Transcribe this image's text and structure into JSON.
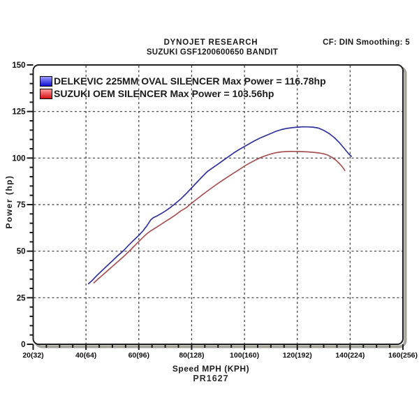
{
  "header": {
    "brand": "DYNOJET RESEARCH",
    "vehicle": "SUZUKI GSF1200600650 BANDIT",
    "settings": "CF: DIN  Smoothing: 5"
  },
  "chart_data": {
    "type": "line",
    "title": "DYNOJET RESEARCH",
    "subtitle": "SUZUKI GSF1200600650 BANDIT",
    "correction_factor": "CF: DIN",
    "smoothing": "Smoothing: 5",
    "xlabel": "Speed MPH (KPH)",
    "ylabel": "Power (hp)",
    "run_code": "PR1627",
    "xlim": [
      20,
      160
    ],
    "ylim": [
      0,
      150
    ],
    "x_major_step": 20,
    "x_minor_step": 5,
    "y_major_step": 25,
    "y_minor_step": 5,
    "grid": "dashed",
    "grid_color": "#3a3a3a",
    "border_color": "#1f1f1f",
    "shadow_color": "#a5a49a",
    "legend_position": "top-left",
    "x_tick_labels": [
      "20(32)",
      "40(64)",
      "60(96)",
      "80(128)",
      "100(160)",
      "120(192)",
      "140(224)",
      "160(256)"
    ],
    "y_tick_labels": [
      "0",
      "25",
      "50",
      "75",
      "100",
      "125",
      "150"
    ],
    "series": [
      {
        "name": "DELKEVIC 225MM OVAL SILENCER",
        "legend_label": "DELKEVIC 225MM OVAL SILENCER Max Power = 116.78hp",
        "max_power_hp": 116.78,
        "line_color": "#32329b",
        "swatch_top_color": "#9a9aff",
        "swatch_bottom_color": "#0f0fd6",
        "points": [
          [
            41,
            32.5
          ],
          [
            42.5,
            34.5
          ],
          [
            44,
            36.8
          ],
          [
            46,
            39.5
          ],
          [
            48,
            42.2
          ],
          [
            50,
            44.8
          ],
          [
            52,
            47.5
          ],
          [
            54,
            50
          ],
          [
            56,
            53
          ],
          [
            58,
            55.8
          ],
          [
            60,
            58.5
          ],
          [
            61.5,
            60.8
          ],
          [
            63,
            63.5
          ],
          [
            64.5,
            66.8
          ],
          [
            65.5,
            68
          ],
          [
            67,
            69
          ],
          [
            68.5,
            70.2
          ],
          [
            70,
            71.5
          ],
          [
            72,
            73.5
          ],
          [
            74,
            75.8
          ],
          [
            76,
            78.2
          ],
          [
            78,
            81
          ],
          [
            80,
            84
          ],
          [
            82,
            87
          ],
          [
            84,
            90
          ],
          [
            86,
            92.8
          ],
          [
            88,
            94.8
          ],
          [
            90,
            96.8
          ],
          [
            92,
            98.8
          ],
          [
            94,
            100.8
          ],
          [
            96,
            102.8
          ],
          [
            98,
            104.6
          ],
          [
            100,
            106.2
          ],
          [
            102,
            107.8
          ],
          [
            104,
            109.4
          ],
          [
            106,
            110.8
          ],
          [
            108,
            112
          ],
          [
            110,
            113.2
          ],
          [
            112,
            114.4
          ],
          [
            114,
            115.3
          ],
          [
            116,
            115.9
          ],
          [
            118,
            116.3
          ],
          [
            120,
            116.6
          ],
          [
            122,
            116.78
          ],
          [
            124,
            116.75
          ],
          [
            126,
            116.6
          ],
          [
            128,
            116.1
          ],
          [
            130,
            114.9
          ],
          [
            132,
            113.2
          ],
          [
            134,
            111
          ],
          [
            136,
            108.2
          ],
          [
            138,
            104.8
          ],
          [
            139.5,
            102.2
          ],
          [
            140.5,
            100.9
          ]
        ]
      },
      {
        "name": "SUZUKI OEM SILENCER",
        "legend_label": "SUZUKI OEM SILENCER Max Power = 103.56hp",
        "max_power_hp": 103.56,
        "line_color": "#a65353",
        "swatch_top_color": "#ff9a9a",
        "swatch_bottom_color": "#d61111",
        "points": [
          [
            43,
            33
          ],
          [
            44.5,
            35
          ],
          [
            46,
            36.8
          ],
          [
            48,
            39.3
          ],
          [
            50,
            41.8
          ],
          [
            52,
            44.3
          ],
          [
            54,
            46.8
          ],
          [
            56,
            49.5
          ],
          [
            58,
            52.3
          ],
          [
            60,
            55.2
          ],
          [
            61.5,
            57.3
          ],
          [
            63,
            59.3
          ],
          [
            64.5,
            60.9
          ],
          [
            66,
            62.2
          ],
          [
            68,
            64
          ],
          [
            70,
            65.9
          ],
          [
            72,
            67.7
          ],
          [
            74,
            69.6
          ],
          [
            76,
            71.7
          ],
          [
            78,
            73.4
          ],
          [
            80,
            75.8
          ],
          [
            82,
            78
          ],
          [
            84,
            80.2
          ],
          [
            86,
            82.3
          ],
          [
            88,
            84.4
          ],
          [
            90,
            86.4
          ],
          [
            92,
            88.3
          ],
          [
            94,
            90.2
          ],
          [
            96,
            92
          ],
          [
            98,
            93.8
          ],
          [
            100,
            95.7
          ],
          [
            102,
            97.3
          ],
          [
            104,
            98.8
          ],
          [
            106,
            100.2
          ],
          [
            108,
            101.3
          ],
          [
            110,
            102.2
          ],
          [
            112,
            102.9
          ],
          [
            114,
            103.3
          ],
          [
            116,
            103.5
          ],
          [
            118,
            103.56
          ],
          [
            120,
            103.5
          ],
          [
            122,
            103.45
          ],
          [
            124,
            103.3
          ],
          [
            126,
            103.1
          ],
          [
            128,
            102.8
          ],
          [
            130,
            102.3
          ],
          [
            131.5,
            101.6
          ],
          [
            133,
            100.5
          ],
          [
            134.5,
            99
          ],
          [
            136,
            97
          ],
          [
            137.2,
            95
          ],
          [
            138,
            93.3
          ]
        ]
      }
    ]
  }
}
